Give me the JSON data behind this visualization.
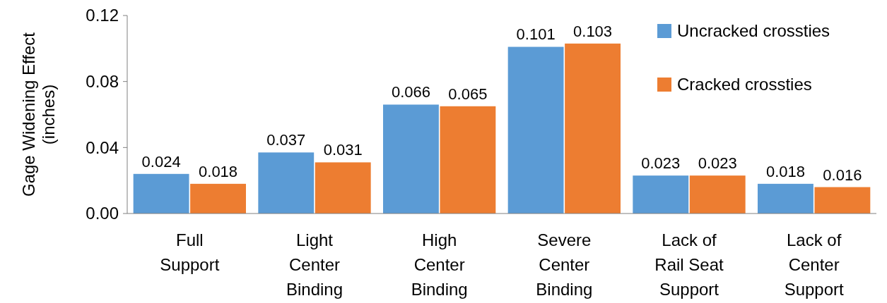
{
  "chart_data": {
    "type": "bar",
    "ylabel": "Gage Widening Effect (inches)",
    "categories": [
      "Full Support",
      "Light Center Binding",
      "High Center Binding",
      "Severe Center Binding",
      "Lack of Rail Seat Support",
      "Lack of Center Support"
    ],
    "series": [
      {
        "name": "Uncracked crossties",
        "color": "#5b9bd5",
        "values": [
          0.024,
          0.037,
          0.066,
          0.101,
          0.023,
          0.018
        ]
      },
      {
        "name": "Cracked crossties",
        "color": "#ed7d31",
        "values": [
          0.018,
          0.031,
          0.065,
          0.103,
          0.023,
          0.016
        ]
      }
    ],
    "ylim": [
      0,
      0.12
    ],
    "yticks": [
      {
        "value": 0,
        "label": "0.00"
      },
      {
        "value": 0.04,
        "label": "0.04"
      },
      {
        "value": 0.08,
        "label": "0.08"
      },
      {
        "value": 0.12,
        "label": "0.12"
      }
    ],
    "data_labels": true,
    "legend": "top right",
    "grid": false
  }
}
